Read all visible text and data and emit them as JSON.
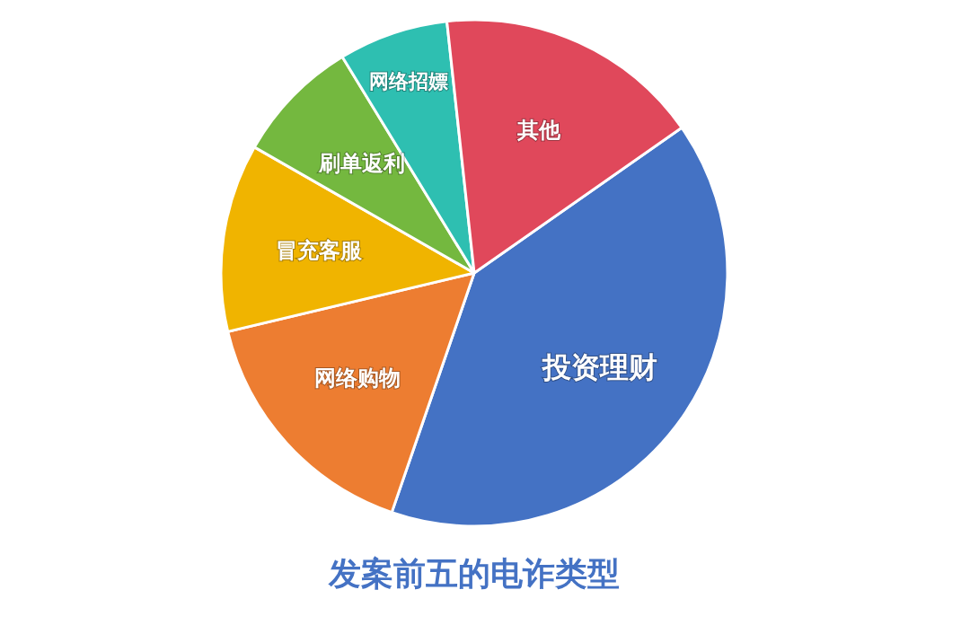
{
  "chart_data": {
    "type": "pie",
    "title": "发案前五的电诈类型",
    "categories": [
      "投资理财",
      "网络购物",
      "冒充客服",
      "刷单返利",
      "网络招嫖",
      "其他"
    ],
    "values": [
      40,
      16,
      12,
      8,
      7,
      17
    ],
    "colors": [
      "#4472c4",
      "#ed7d31",
      "#f0b400",
      "#74b83f",
      "#2ebfb1",
      "#e0485b"
    ]
  }
}
